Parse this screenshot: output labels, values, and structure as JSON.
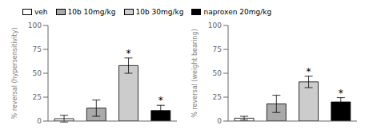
{
  "chart_data": [
    {
      "type": "bar",
      "ylabel": "% reversal (hypersensitivity)",
      "categories": [
        "veh",
        "10b 10mg/kg",
        "10b 30mg/kg",
        "naproxen 20mg/kg"
      ],
      "values": [
        2.5,
        13.5,
        58.0,
        11.0
      ],
      "errors": [
        3.5,
        8.5,
        8.0,
        5.5
      ],
      "colors": [
        "white",
        "#aaaaaa",
        "#cccccc",
        "black"
      ],
      "annotations": [
        {
          "category": "10b 30mg/kg",
          "text": "*"
        },
        {
          "category": "naproxen 20mg/kg",
          "text": "*"
        }
      ],
      "ylim": [
        0,
        100
      ],
      "yticks": [
        0,
        25,
        50,
        75,
        100
      ],
      "grid": false,
      "tick_labels": "y",
      "legend": "upper left"
    },
    {
      "type": "bar",
      "ylabel": "% reversal (weight bearing)",
      "categories": [
        "veh",
        "10b 10mg/kg",
        "10b 30mg/kg",
        "naproxen 20mg/kg"
      ],
      "values": [
        3.0,
        18.0,
        41.0,
        20.0
      ],
      "errors": [
        2.0,
        9.0,
        6.0,
        4.5
      ],
      "colors": [
        "white",
        "#aaaaaa",
        "#cccccc",
        "black"
      ],
      "annotations": [
        {
          "category": "10b 30mg/kg",
          "text": "*"
        },
        {
          "category": "naproxen 20mg/kg",
          "text": "*"
        }
      ],
      "ylim": [
        0,
        100
      ],
      "yticks": [
        0,
        25,
        50,
        75,
        100
      ],
      "grid": false,
      "tick_labels": "y"
    }
  ]
}
